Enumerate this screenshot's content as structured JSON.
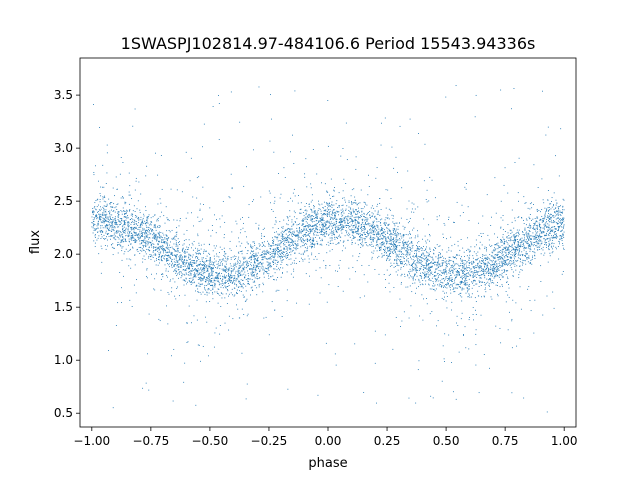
{
  "chart_data": {
    "type": "scatter",
    "title": "1SWASPJ102814.97-484106.6 Period 15543.94336s",
    "xlabel": "phase",
    "ylabel": "flux",
    "xlim": [
      -1.05,
      1.05
    ],
    "ylim": [
      0.37,
      3.85
    ],
    "xticks": [
      -1.0,
      -0.75,
      -0.5,
      -0.25,
      0.0,
      0.25,
      0.5,
      0.75,
      1.0
    ],
    "xtick_labels": [
      "−1.00",
      "−0.75",
      "−0.50",
      "−0.25",
      "0.00",
      "0.25",
      "0.50",
      "0.75",
      "1.00"
    ],
    "yticks": [
      0.5,
      1.0,
      1.5,
      2.0,
      2.5,
      3.0,
      3.5
    ],
    "ytick_labels": [
      "0.5",
      "1.0",
      "1.5",
      "2.0",
      "2.5",
      "3.0",
      "3.5"
    ],
    "grid": false,
    "marker_color": "#1f77b4",
    "series": [
      {
        "description": "phase-folded light curve, approx. sinusoidal with period 1 in phase",
        "mean_flux": 2.06,
        "amplitude": 0.25,
        "max_phase": 0.05,
        "scatter_sigma": 0.15,
        "outlier_range": [
          0.5,
          3.6
        ],
        "sample_points": [
          {
            "x": -1.0,
            "y": 2.28
          },
          {
            "x": -0.9,
            "y": 2.27
          },
          {
            "x": -0.8,
            "y": 2.2
          },
          {
            "x": -0.7,
            "y": 2.08
          },
          {
            "x": -0.6,
            "y": 1.92
          },
          {
            "x": -0.5,
            "y": 1.82
          },
          {
            "x": -0.45,
            "y": 1.8
          },
          {
            "x": -0.4,
            "y": 1.82
          },
          {
            "x": -0.3,
            "y": 1.93
          },
          {
            "x": -0.2,
            "y": 2.07
          },
          {
            "x": -0.1,
            "y": 2.22
          },
          {
            "x": 0.0,
            "y": 2.3
          },
          {
            "x": 0.05,
            "y": 2.31
          },
          {
            "x": 0.1,
            "y": 2.29
          },
          {
            "x": 0.2,
            "y": 2.22
          },
          {
            "x": 0.3,
            "y": 2.1
          },
          {
            "x": 0.4,
            "y": 1.95
          },
          {
            "x": 0.5,
            "y": 1.83
          },
          {
            "x": 0.55,
            "y": 1.8
          },
          {
            "x": 0.6,
            "y": 1.82
          },
          {
            "x": 0.7,
            "y": 1.93
          },
          {
            "x": 0.8,
            "y": 2.07
          },
          {
            "x": 0.9,
            "y": 2.2
          },
          {
            "x": 1.0,
            "y": 2.28
          }
        ]
      }
    ]
  }
}
